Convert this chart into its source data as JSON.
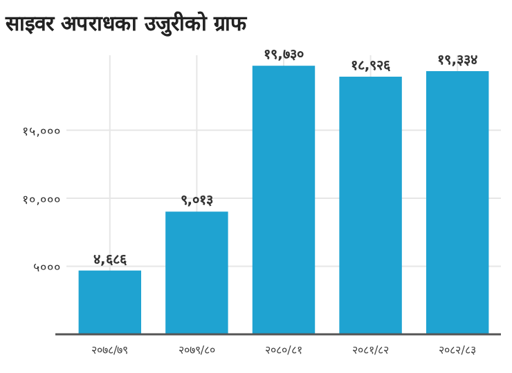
{
  "chart_data": {
    "type": "bar",
    "title": "साइवर अपराधका उजुरीको ग्राफ",
    "categories": [
      "२०७८/७९",
      "२०७९/८०",
      "२०८०/८१",
      "२०८१/८२",
      "२०८२/८३"
    ],
    "values": [
      4686,
      9013,
      19730,
      18926,
      19334
    ],
    "value_labels": [
      "४,६८६",
      "९,०१३",
      "१९,७३०",
      "१८,९२६",
      "१९,३३४"
    ],
    "color": "#1fa3d1",
    "ylim": [
      0,
      20500
    ],
    "yticks": [
      {
        "value": 5000,
        "label": "५०००"
      },
      {
        "value": 10000,
        "label": "१०,०००"
      },
      {
        "value": 15000,
        "label": "१५,०००"
      }
    ],
    "grid": true
  }
}
